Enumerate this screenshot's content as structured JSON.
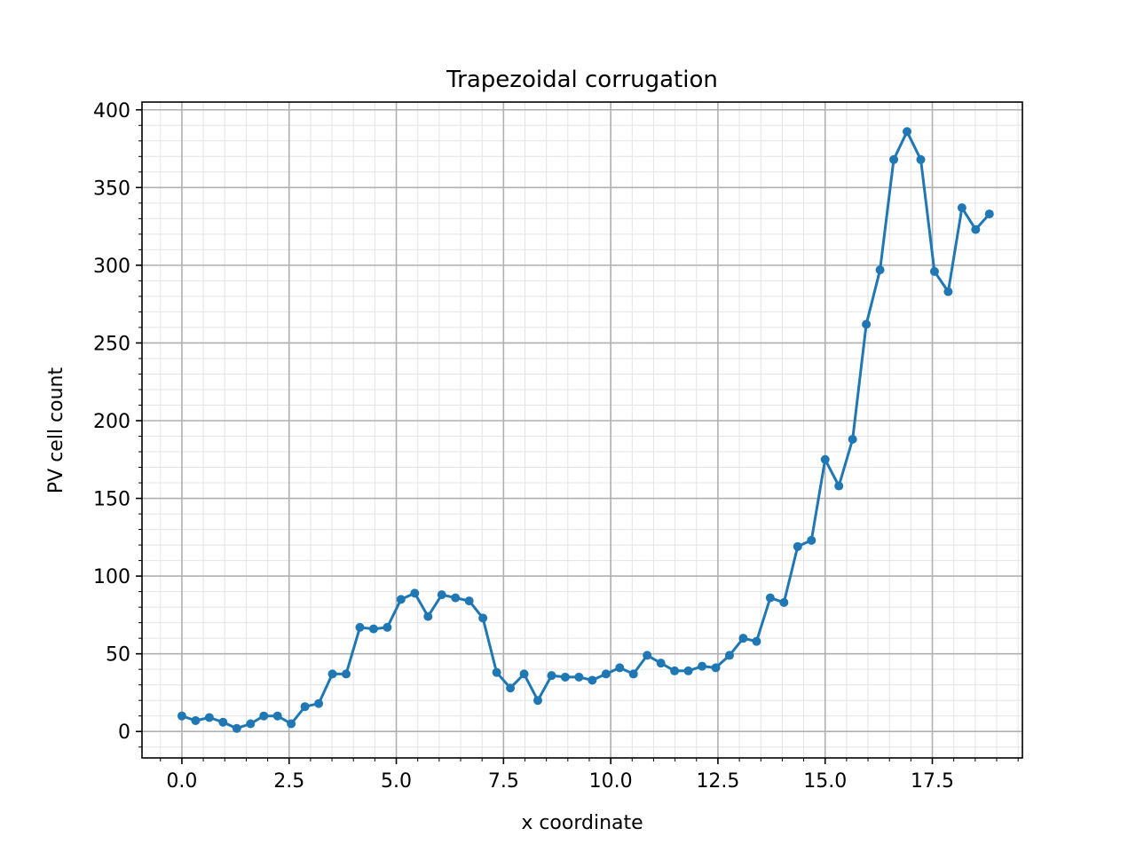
{
  "chart_data": {
    "type": "line",
    "title": "Trapezoidal corrugation",
    "xlabel": "x coordinate",
    "ylabel": "PV cell count",
    "xlim": [
      -0.93,
      19.6
    ],
    "ylim": [
      -17,
      405
    ],
    "grid": true,
    "minor_grid": true,
    "legend": "none",
    "colors": {
      "series": "#1f77b4",
      "major_grid": "#b0b0b0",
      "minor_grid": "#e4e4e4"
    },
    "x_ticks": [
      {
        "value": 0.0,
        "label": "0.0"
      },
      {
        "value": 2.5,
        "label": "2.5"
      },
      {
        "value": 5.0,
        "label": "5.0"
      },
      {
        "value": 7.5,
        "label": "7.5"
      },
      {
        "value": 10.0,
        "label": "10.0"
      },
      {
        "value": 12.5,
        "label": "12.5"
      },
      {
        "value": 15.0,
        "label": "15.0"
      },
      {
        "value": 17.5,
        "label": "17.5"
      }
    ],
    "y_ticks": [
      {
        "value": 0,
        "label": "0"
      },
      {
        "value": 50,
        "label": "50"
      },
      {
        "value": 100,
        "label": "100"
      },
      {
        "value": 150,
        "label": "150"
      },
      {
        "value": 200,
        "label": "200"
      },
      {
        "value": 250,
        "label": "250"
      },
      {
        "value": 300,
        "label": "300"
      },
      {
        "value": 350,
        "label": "350"
      },
      {
        "value": 400,
        "label": "400"
      }
    ],
    "x_minor_step": 0.5,
    "y_minor_step": 10,
    "series": [
      {
        "x": [
          0.0,
          0.32,
          0.64,
          0.96,
          1.28,
          1.6,
          1.91,
          2.23,
          2.55,
          2.87,
          3.19,
          3.51,
          3.83,
          4.15,
          4.47,
          4.79,
          5.11,
          5.43,
          5.74,
          6.06,
          6.38,
          6.7,
          7.02,
          7.34,
          7.66,
          7.98,
          8.3,
          8.62,
          8.94,
          9.26,
          9.57,
          9.89,
          10.21,
          10.53,
          10.85,
          11.17,
          11.49,
          11.81,
          12.13,
          12.45,
          12.77,
          13.09,
          13.4,
          13.72,
          14.04,
          14.36,
          14.68,
          15.0,
          15.32,
          15.64,
          15.96,
          16.28,
          16.6,
          16.91,
          17.23,
          17.55,
          17.87,
          18.19,
          18.51,
          18.83
        ],
        "y": [
          10,
          7,
          9,
          6,
          2,
          5,
          10,
          10,
          5,
          16,
          18,
          37,
          37,
          67,
          66,
          67,
          85,
          89,
          74,
          88,
          86,
          84,
          73,
          38,
          28,
          37,
          20,
          36,
          35,
          35,
          33,
          37,
          41,
          37,
          49,
          44,
          39,
          39,
          42,
          41,
          49,
          60,
          58,
          86,
          83,
          119,
          123,
          175,
          158,
          188,
          262,
          297,
          368,
          386,
          368,
          296,
          283,
          337,
          323,
          333
        ]
      }
    ]
  }
}
